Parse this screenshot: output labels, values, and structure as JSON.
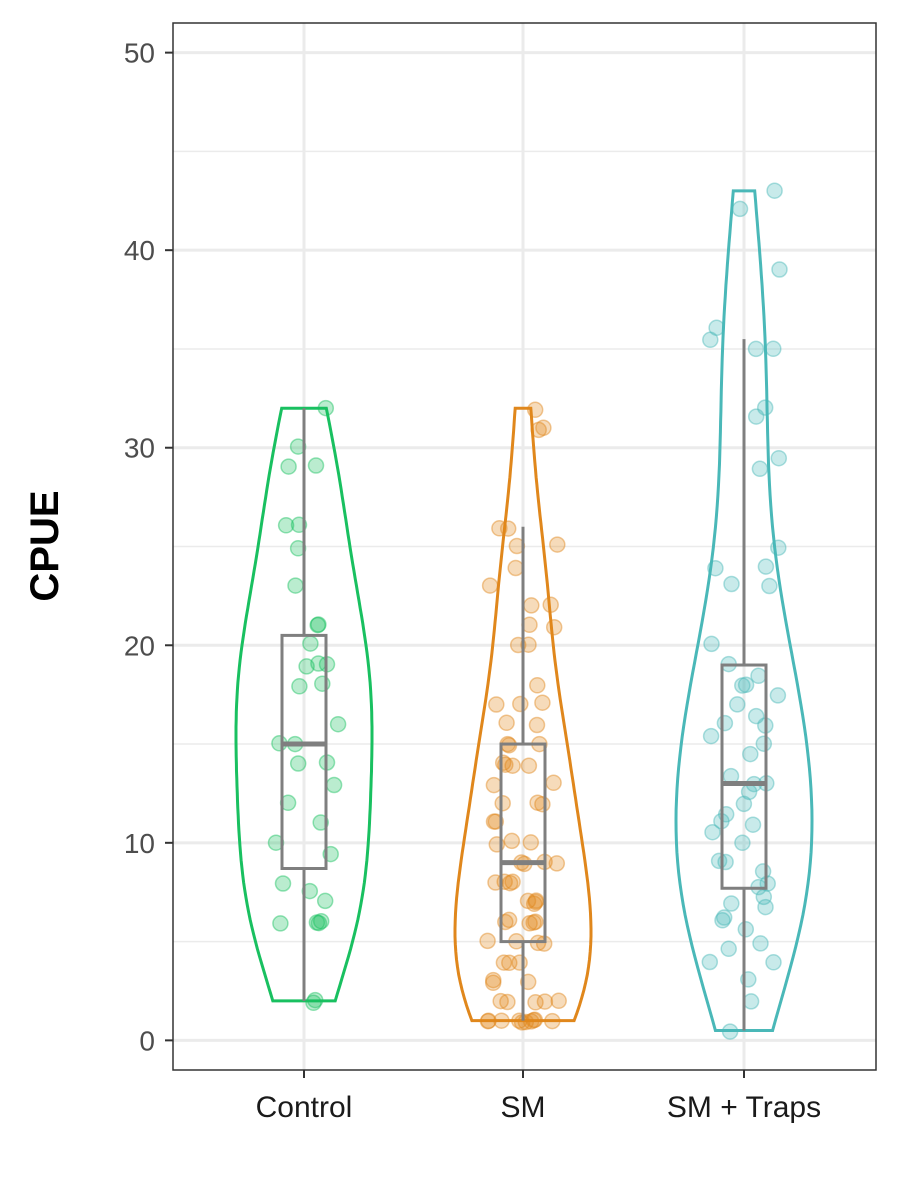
{
  "chart_data": {
    "type": "violin",
    "title": "",
    "xlabel": "",
    "ylabel": "CPUE",
    "ylim": [
      -1.5,
      51.5
    ],
    "yticks": [
      0,
      10,
      20,
      30,
      40,
      50
    ],
    "y_tick_labels": [
      "0",
      "10",
      "20",
      "30",
      "40",
      "50"
    ],
    "grid": true,
    "legend": "none",
    "categories": [
      "Control",
      "SM",
      "SM + Traps"
    ],
    "colors": {
      "Control": "#19c060",
      "SM": "#e0871c",
      "SM + Traps": "#4ab8b8",
      "box": "#7f7f7f"
    },
    "groups": [
      {
        "name": "Control",
        "box": {
          "whisker_low": 2,
          "q1": 8.7,
          "median": 15,
          "q3": 20.5,
          "whisker_high": 32
        },
        "violin_range": [
          2,
          32
        ],
        "points": [
          2,
          2,
          6,
          6,
          6,
          6,
          7,
          7.5,
          8,
          9.5,
          10,
          11,
          12,
          13,
          14,
          14,
          15,
          15,
          16,
          18,
          18,
          19,
          19,
          19,
          20,
          21,
          21,
          23,
          25,
          26,
          26,
          29,
          29,
          30,
          32
        ]
      },
      {
        "name": "SM",
        "box": {
          "whisker_low": 1,
          "q1": 5,
          "median": 9,
          "q3": 15,
          "whisker_high": 26
        },
        "violin_range": [
          1,
          32
        ],
        "points": [
          1,
          1,
          1,
          1,
          1,
          1,
          1,
          1,
          1,
          1,
          2,
          2,
          2,
          2,
          2,
          3,
          3,
          3,
          4,
          4,
          4,
          5,
          5,
          5,
          5,
          6,
          6,
          6,
          6,
          6,
          7,
          7,
          7,
          7,
          8,
          8,
          8,
          8,
          9,
          9,
          9,
          9,
          10,
          10,
          10,
          11,
          11,
          12,
          12,
          12,
          13,
          13,
          14,
          14,
          14,
          14,
          15,
          15,
          15,
          16,
          16,
          17,
          17,
          17,
          18,
          20,
          20,
          21,
          21,
          22,
          22,
          23,
          24,
          25,
          25,
          26,
          26,
          31,
          31,
          32
        ]
      },
      {
        "name": "SM + Traps",
        "box": {
          "whisker_low": 0.5,
          "q1": 7.7,
          "median": 13,
          "q3": 19,
          "whisker_high": 35.5
        },
        "violin_range": [
          0.5,
          43
        ],
        "points": [
          0.5,
          2,
          3,
          4,
          4,
          4.7,
          5,
          5.7,
          6,
          6.3,
          6.7,
          7,
          7.3,
          7.7,
          8,
          8.5,
          9,
          9,
          10,
          10.5,
          11,
          11,
          11.5,
          12,
          12.5,
          13,
          13,
          13.3,
          14.5,
          15,
          15.5,
          16,
          16,
          16.5,
          17,
          17.5,
          18,
          18,
          18.5,
          19,
          20,
          23,
          23,
          24,
          24,
          25,
          29,
          29.5,
          31.5,
          32,
          35,
          35,
          35.5,
          36,
          39,
          42,
          43
        ]
      }
    ]
  }
}
